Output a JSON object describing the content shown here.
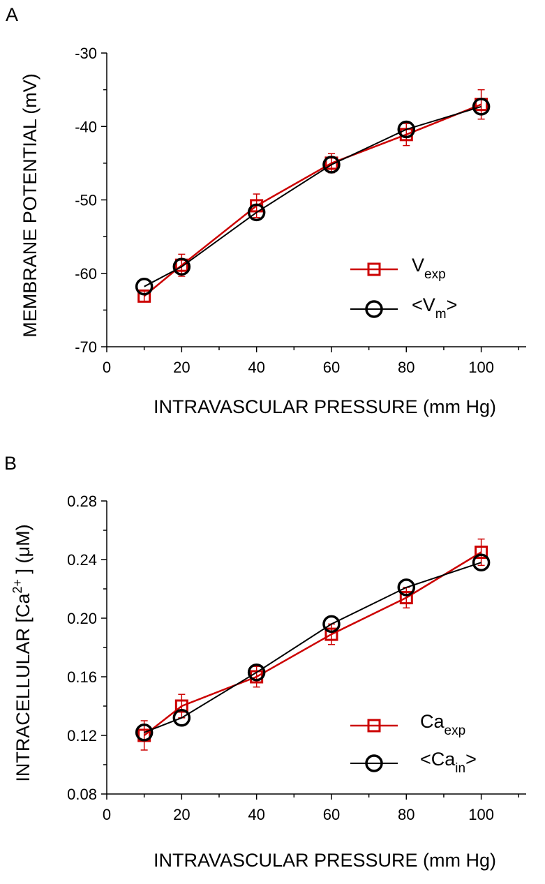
{
  "chart_data": [
    {
      "type": "line",
      "panel_label": "A",
      "xlabel": "INTRAVASCULAR PRESSURE (mm Hg)",
      "ylabel": "MEMBRANE POTENTIAL (mV)",
      "xlim": [
        0,
        112
      ],
      "ylim": [
        -70,
        -30
      ],
      "x_ticks": [
        0,
        20,
        40,
        60,
        80,
        100
      ],
      "x_tick_labels": [
        "0",
        "20",
        "40",
        "60",
        "80",
        "100"
      ],
      "y_ticks": [
        -70,
        -60,
        -50,
        -40,
        -30
      ],
      "y_tick_labels": [
        "-70",
        "-60",
        "-50",
        "-40",
        "-30"
      ],
      "y_tick_decimals": 0,
      "x": [
        10,
        20,
        40,
        60,
        80,
        100
      ],
      "legend_position": "lower-right",
      "series": [
        {
          "name": "Vexp",
          "legend_main": "V",
          "legend_sub": "exp",
          "color": "#cc0000",
          "marker": "square",
          "values": [
            -63.1,
            -58.9,
            -50.8,
            -45.0,
            -41.1,
            -37.0
          ],
          "error": [
            0.7,
            1.5,
            1.6,
            1.3,
            1.5,
            2.0
          ]
        },
        {
          "name": "<Vm>",
          "legend_main": "<V",
          "legend_sub": "m",
          "legend_tail": ">",
          "color": "#000000",
          "marker": "circle",
          "values": [
            -61.8,
            -59.1,
            -51.7,
            -45.2,
            -40.4,
            -37.3
          ],
          "error": []
        }
      ]
    },
    {
      "type": "line",
      "panel_label": "B",
      "xlabel": "INTRAVASCULAR PRESSURE (mm Hg)",
      "ylabel": "INTRACELLULAR [Ca2+ ] (μM)",
      "ylabel_parts": {
        "before": "INTRACELLULAR [Ca",
        "sup": "2+",
        "after": " ] (μM)"
      },
      "xlim": [
        0,
        112
      ],
      "ylim": [
        0.08,
        0.28
      ],
      "x_ticks": [
        0,
        20,
        40,
        60,
        80,
        100
      ],
      "x_tick_labels": [
        "0",
        "20",
        "40",
        "60",
        "80",
        "100"
      ],
      "y_ticks": [
        0.08,
        0.12,
        0.16,
        0.2,
        0.24,
        0.28
      ],
      "y_tick_labels": [
        "0.08",
        "0.12",
        "0.16",
        "0.20",
        "0.24",
        "0.28"
      ],
      "y_tick_decimals": 2,
      "x": [
        10,
        20,
        40,
        60,
        80,
        100
      ],
      "legend_position": "lower-right",
      "series": [
        {
          "name": "Caexp",
          "legend_main": "Ca",
          "legend_sub": "exp",
          "color": "#cc0000",
          "marker": "square",
          "values": [
            0.12,
            0.14,
            0.16,
            0.189,
            0.214,
            0.245
          ],
          "error": [
            0.01,
            0.008,
            0.007,
            0.007,
            0.007,
            0.009
          ]
        },
        {
          "name": "<Cain>",
          "legend_main": "<Ca",
          "legend_sub": "in",
          "legend_tail": ">",
          "color": "#000000",
          "marker": "circle",
          "values": [
            0.122,
            0.132,
            0.163,
            0.196,
            0.221,
            0.238
          ],
          "error": []
        }
      ]
    }
  ]
}
